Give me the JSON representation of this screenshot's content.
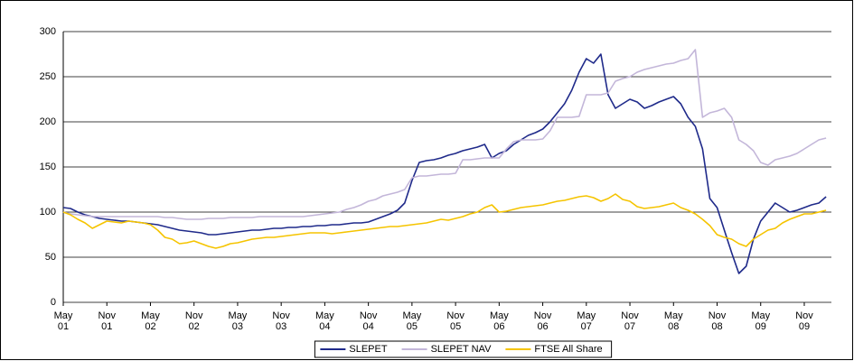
{
  "chart_data": {
    "type": "line",
    "x": [
      "2001-05",
      "2001-06",
      "2001-07",
      "2001-08",
      "2001-09",
      "2001-10",
      "2001-11",
      "2001-12",
      "2002-01",
      "2002-02",
      "2002-03",
      "2002-04",
      "2002-05",
      "2002-06",
      "2002-07",
      "2002-08",
      "2002-09",
      "2002-10",
      "2002-11",
      "2002-12",
      "2003-01",
      "2003-02",
      "2003-03",
      "2003-04",
      "2003-05",
      "2003-06",
      "2003-07",
      "2003-08",
      "2003-09",
      "2003-10",
      "2003-11",
      "2003-12",
      "2004-01",
      "2004-02",
      "2004-03",
      "2004-04",
      "2004-05",
      "2004-06",
      "2004-07",
      "2004-08",
      "2004-09",
      "2004-10",
      "2004-11",
      "2004-12",
      "2005-01",
      "2005-02",
      "2005-03",
      "2005-04",
      "2005-05",
      "2005-06",
      "2005-07",
      "2005-08",
      "2005-09",
      "2005-10",
      "2005-11",
      "2005-12",
      "2006-01",
      "2006-02",
      "2006-03",
      "2006-04",
      "2006-05",
      "2006-06",
      "2006-07",
      "2006-08",
      "2006-09",
      "2006-10",
      "2006-11",
      "2006-12",
      "2007-01",
      "2007-02",
      "2007-03",
      "2007-04",
      "2007-05",
      "2007-06",
      "2007-07",
      "2007-08",
      "2007-09",
      "2007-10",
      "2007-11",
      "2007-12",
      "2008-01",
      "2008-02",
      "2008-03",
      "2008-04",
      "2008-05",
      "2008-06",
      "2008-07",
      "2008-08",
      "2008-09",
      "2008-10",
      "2008-11",
      "2008-12",
      "2009-01",
      "2009-02",
      "2009-03",
      "2009-04",
      "2009-05",
      "2009-06",
      "2009-07",
      "2009-08",
      "2009-09",
      "2009-10",
      "2009-11",
      "2009-12",
      "2010-01",
      "2010-02"
    ],
    "series": [
      {
        "name": "SLEPET",
        "color": "#1f2a8a",
        "values": [
          105,
          104,
          100,
          97,
          95,
          93,
          92,
          91,
          90,
          90,
          89,
          88,
          87,
          86,
          84,
          82,
          80,
          79,
          78,
          77,
          75,
          75,
          76,
          77,
          78,
          79,
          80,
          80,
          81,
          82,
          82,
          83,
          83,
          84,
          84,
          85,
          85,
          86,
          86,
          87,
          88,
          88,
          89,
          92,
          95,
          98,
          102,
          110,
          135,
          155,
          157,
          158,
          160,
          163,
          165,
          168,
          170,
          172,
          175,
          160,
          165,
          168,
          175,
          180,
          185,
          188,
          192,
          200,
          210,
          220,
          235,
          255,
          270,
          265,
          275,
          230,
          215,
          220,
          225,
          222,
          215,
          218,
          222,
          225,
          228,
          220,
          205,
          195,
          170,
          115,
          105,
          80,
          55,
          32,
          40,
          70,
          90,
          100,
          110,
          105,
          100,
          102,
          105,
          108,
          110,
          117
        ]
      },
      {
        "name": "SLEPET NAV",
        "color": "#c3b6d9",
        "values": [
          100,
          98,
          97,
          96,
          95,
          95,
          95,
          95,
          95,
          95,
          95,
          95,
          95,
          95,
          94,
          94,
          93,
          92,
          92,
          92,
          93,
          93,
          93,
          94,
          94,
          94,
          94,
          95,
          95,
          95,
          95,
          95,
          95,
          95,
          96,
          97,
          98,
          99,
          100,
          103,
          105,
          108,
          112,
          114,
          118,
          120,
          122,
          125,
          138,
          140,
          140,
          141,
          142,
          142,
          143,
          158,
          158,
          159,
          160,
          160,
          160,
          170,
          178,
          180,
          180,
          180,
          181,
          190,
          205,
          205,
          205,
          206,
          230,
          230,
          230,
          232,
          245,
          248,
          250,
          255,
          258,
          260,
          262,
          264,
          265,
          268,
          270,
          280,
          205,
          210,
          212,
          215,
          205,
          180,
          175,
          168,
          155,
          152,
          158,
          160,
          162,
          165,
          170,
          175,
          180,
          182
        ]
      },
      {
        "name": "FTSE All Share",
        "color": "#f5c400",
        "values": [
          100,
          97,
          92,
          88,
          82,
          86,
          90,
          89,
          88,
          90,
          89,
          88,
          86,
          80,
          72,
          70,
          65,
          66,
          68,
          65,
          62,
          60,
          62,
          65,
          66,
          68,
          70,
          71,
          72,
          72,
          73,
          74,
          75,
          76,
          77,
          77,
          77,
          76,
          77,
          78,
          79,
          80,
          81,
          82,
          83,
          84,
          84,
          85,
          86,
          87,
          88,
          90,
          92,
          91,
          93,
          95,
          98,
          100,
          105,
          108,
          100,
          101,
          103,
          105,
          106,
          107,
          108,
          110,
          112,
          113,
          115,
          117,
          118,
          116,
          112,
          115,
          120,
          114,
          112,
          106,
          104,
          105,
          106,
          108,
          110,
          105,
          102,
          98,
          92,
          85,
          75,
          72,
          70,
          65,
          62,
          70,
          75,
          80,
          82,
          88,
          92,
          95,
          98,
          98,
          100,
          102
        ]
      }
    ],
    "xticks": [
      {
        "value": "2001-05",
        "label": [
          "May",
          "01"
        ]
      },
      {
        "value": "2001-11",
        "label": [
          "Nov",
          "01"
        ]
      },
      {
        "value": "2002-05",
        "label": [
          "May",
          "02"
        ]
      },
      {
        "value": "2002-11",
        "label": [
          "Nov",
          "02"
        ]
      },
      {
        "value": "2003-05",
        "label": [
          "May",
          "03"
        ]
      },
      {
        "value": "2003-11",
        "label": [
          "Nov",
          "03"
        ]
      },
      {
        "value": "2004-05",
        "label": [
          "May",
          "04"
        ]
      },
      {
        "value": "2004-11",
        "label": [
          "Nov",
          "04"
        ]
      },
      {
        "value": "2005-05",
        "label": [
          "May",
          "05"
        ]
      },
      {
        "value": "2005-11",
        "label": [
          "Nov",
          "05"
        ]
      },
      {
        "value": "2006-05",
        "label": [
          "May",
          "06"
        ]
      },
      {
        "value": "2006-11",
        "label": [
          "Nov",
          "06"
        ]
      },
      {
        "value": "2007-05",
        "label": [
          "May",
          "07"
        ]
      },
      {
        "value": "2007-11",
        "label": [
          "Nov",
          "07"
        ]
      },
      {
        "value": "2008-05",
        "label": [
          "May",
          "08"
        ]
      },
      {
        "value": "2008-11",
        "label": [
          "Nov",
          "08"
        ]
      },
      {
        "value": "2009-05",
        "label": [
          "May",
          "09"
        ]
      },
      {
        "value": "2009-11",
        "label": [
          "Nov",
          "09"
        ]
      }
    ],
    "ylim": [
      0,
      300
    ],
    "yticks": [
      0,
      50,
      100,
      150,
      200,
      250,
      300
    ],
    "grid": true,
    "legend": "bottom"
  }
}
